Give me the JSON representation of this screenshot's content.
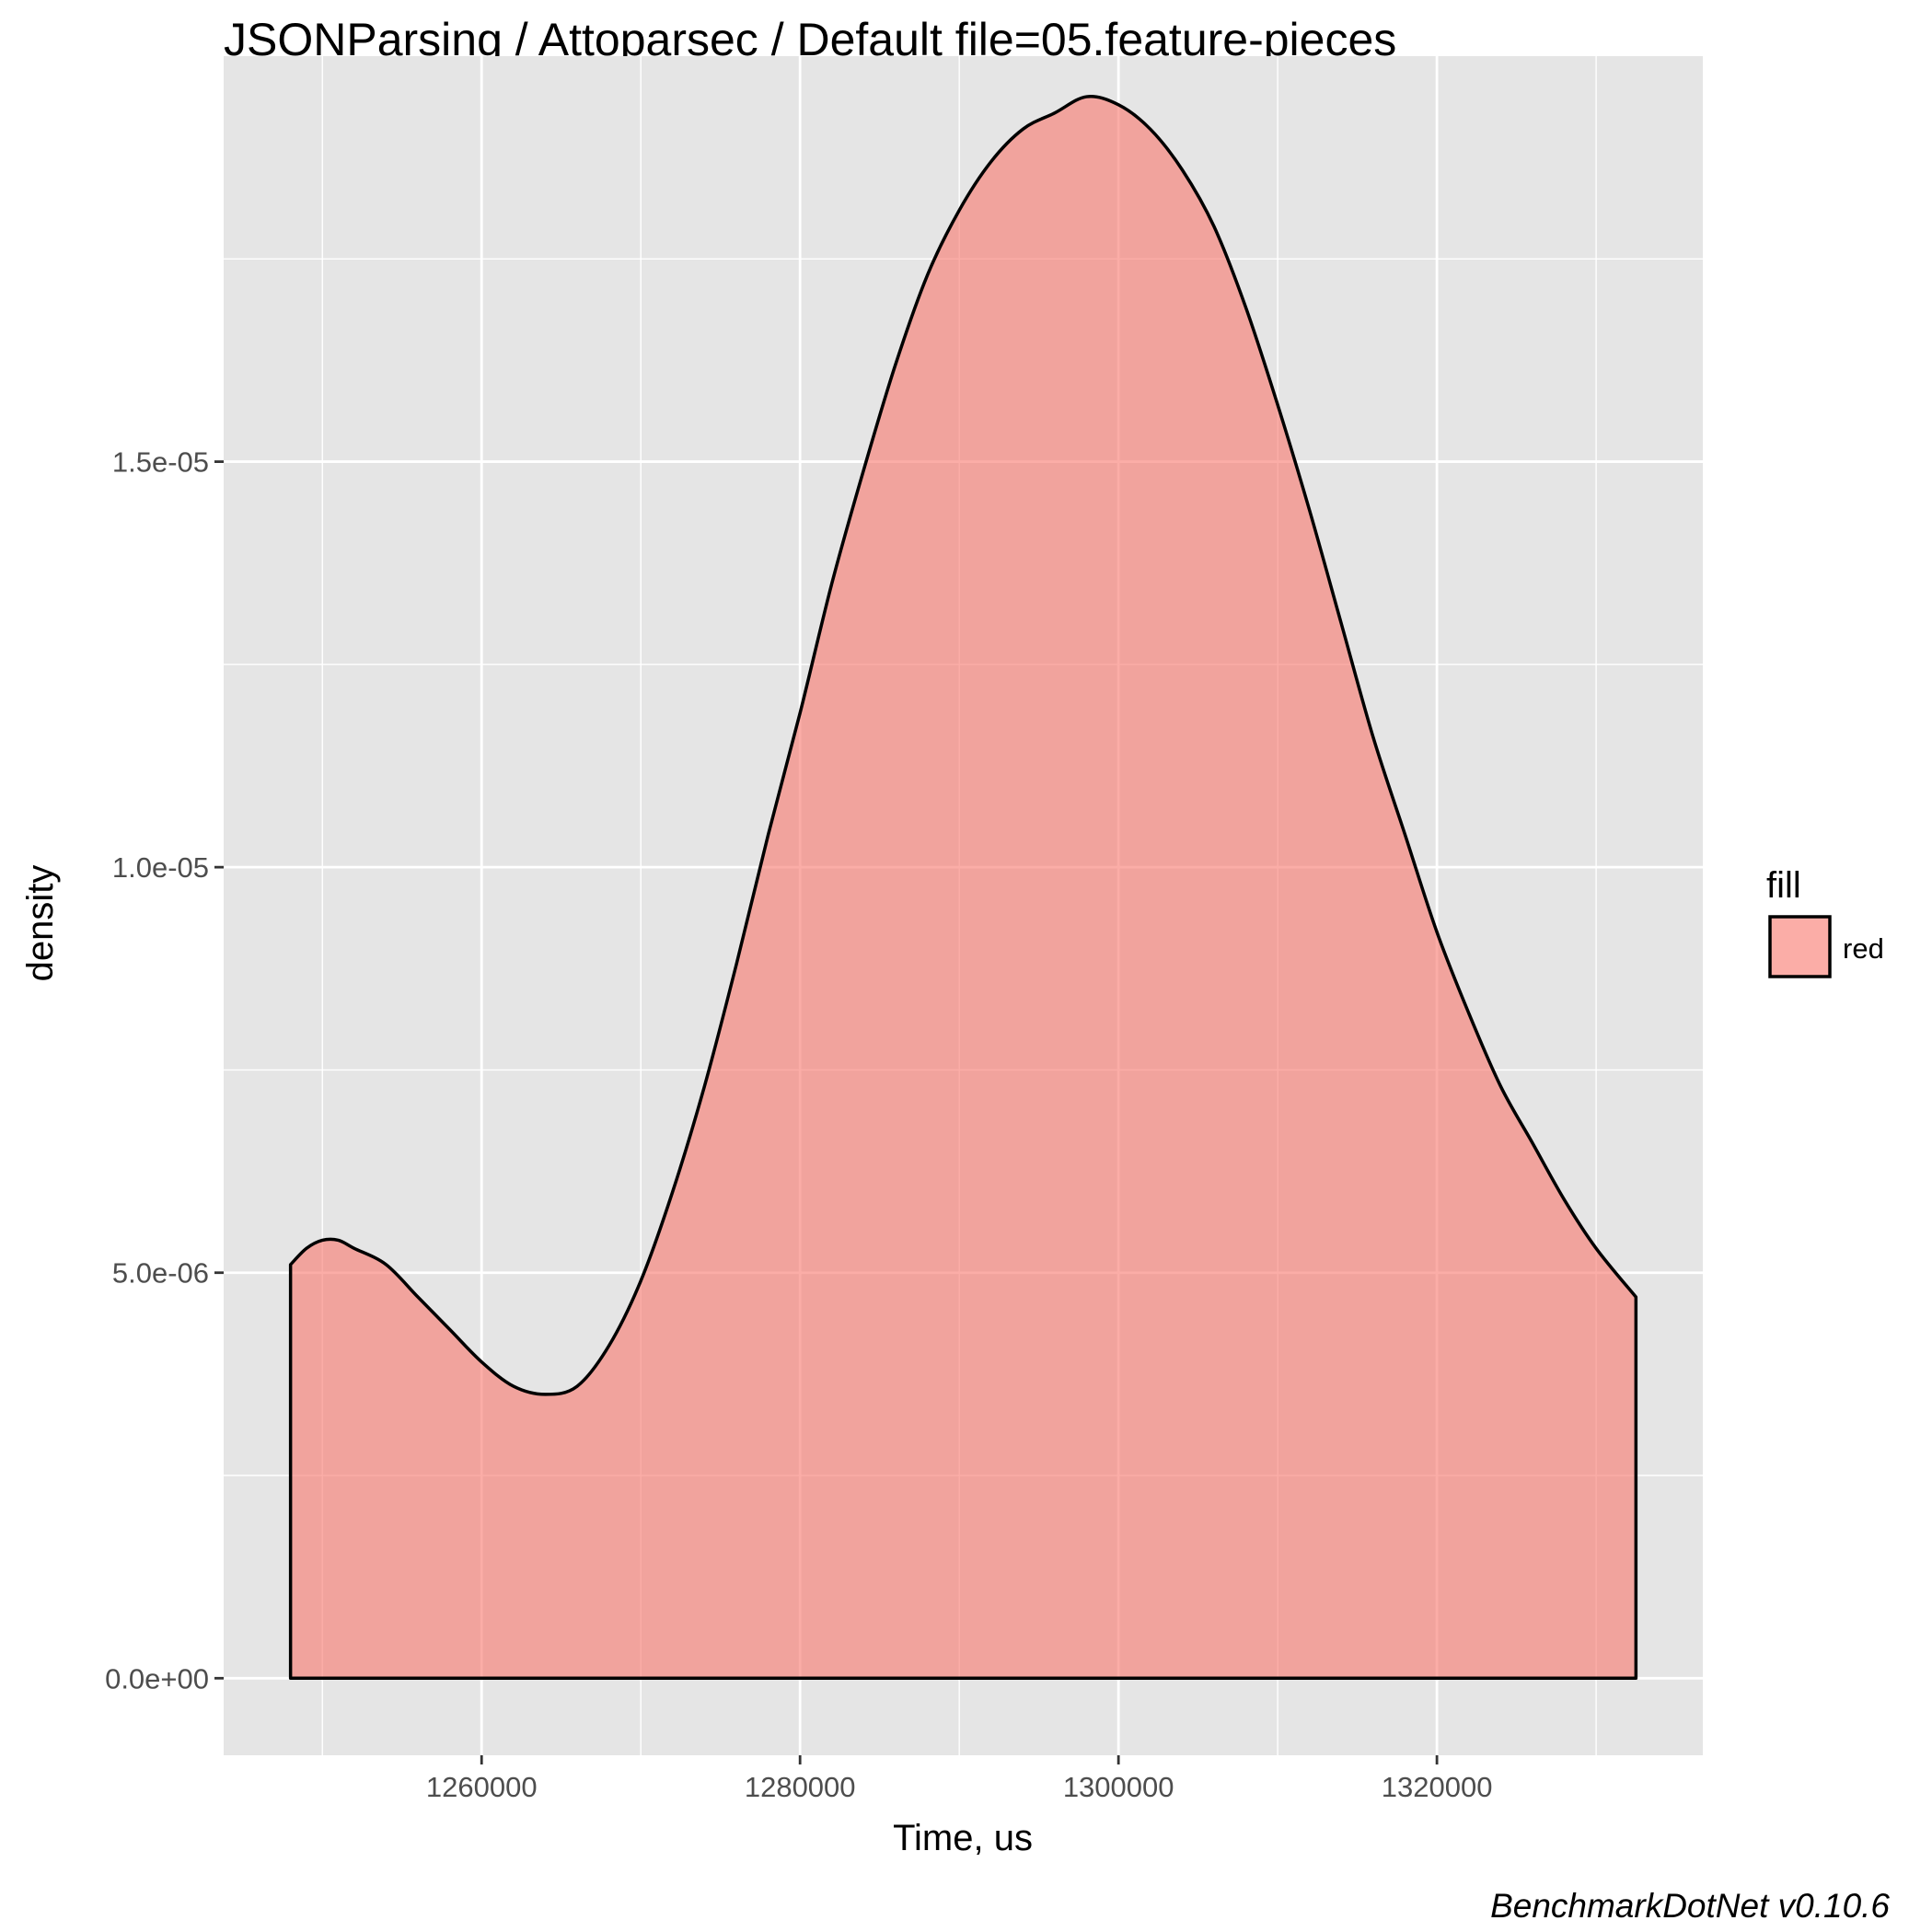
{
  "chart_data": {
    "type": "area",
    "title": "JSONParsing / Attoparsec / Default file=05.feature-pieces",
    "xlabel": "Time, us",
    "ylabel": "density",
    "caption": "BenchmarkDotNet v0.10.6",
    "xlim": [
      1243800,
      1336700
    ],
    "ylim": [
      -9.5e-07,
      2e-05
    ],
    "x_ticks": [
      1260000,
      1280000,
      1300000,
      1320000
    ],
    "x_tick_labels": [
      "1260000",
      "1280000",
      "1300000",
      "1320000"
    ],
    "y_ticks": [
      0,
      5e-06,
      1e-05,
      1.5e-05
    ],
    "y_tick_labels": [
      "0.0e+00",
      "5.0e-06",
      "1.0e-05",
      "1.5e-05"
    ],
    "grid": true,
    "legend": {
      "title": "fill",
      "placement": "right",
      "entries": [
        {
          "label": "red",
          "color": "#F8766D"
        }
      ]
    },
    "series": [
      {
        "name": "red",
        "color": "#F8766D",
        "fill_opacity": 0.6,
        "x": [
          1248000,
          1249000,
          1250000,
          1251000,
          1252000,
          1254000,
          1256000,
          1258000,
          1260000,
          1262000,
          1264000,
          1266000,
          1268000,
          1270000,
          1272000,
          1274000,
          1276000,
          1278000,
          1280000,
          1282000,
          1284000,
          1286000,
          1288000,
          1290000,
          1292000,
          1294000,
          1296000,
          1298000,
          1300000,
          1302000,
          1304000,
          1306000,
          1308000,
          1310000,
          1312000,
          1314000,
          1316000,
          1318000,
          1320000,
          1322000,
          1324000,
          1326000,
          1328000,
          1330000,
          1332500
        ],
        "y": [
          5.1e-06,
          5.3e-06,
          5.4e-06,
          5.4e-06,
          5.3e-06,
          5.1e-06,
          4.7e-06,
          4.3e-06,
          3.9e-06,
          3.6e-06,
          3.5e-06,
          3.6e-06,
          4.1e-06,
          4.9e-06,
          6e-06,
          7.3e-06,
          8.8e-06,
          1.04e-05,
          1.19e-05,
          1.35e-05,
          1.49e-05,
          1.62e-05,
          1.73e-05,
          1.81e-05,
          1.87e-05,
          1.91e-05,
          1.93e-05,
          1.95e-05,
          1.94e-05,
          1.91e-05,
          1.86e-05,
          1.79e-05,
          1.69e-05,
          1.57e-05,
          1.44e-05,
          1.3e-05,
          1.16e-05,
          1.04e-05,
          9.2e-06,
          8.2e-06,
          7.3e-06,
          6.6e-06,
          5.9e-06,
          5.3e-06,
          4.7e-06
        ]
      }
    ]
  },
  "colors": {
    "panel_background": "#E5E5E5",
    "grid_major": "#FFFFFF",
    "series_fill": "#F8766D",
    "outline": "#000000"
  }
}
